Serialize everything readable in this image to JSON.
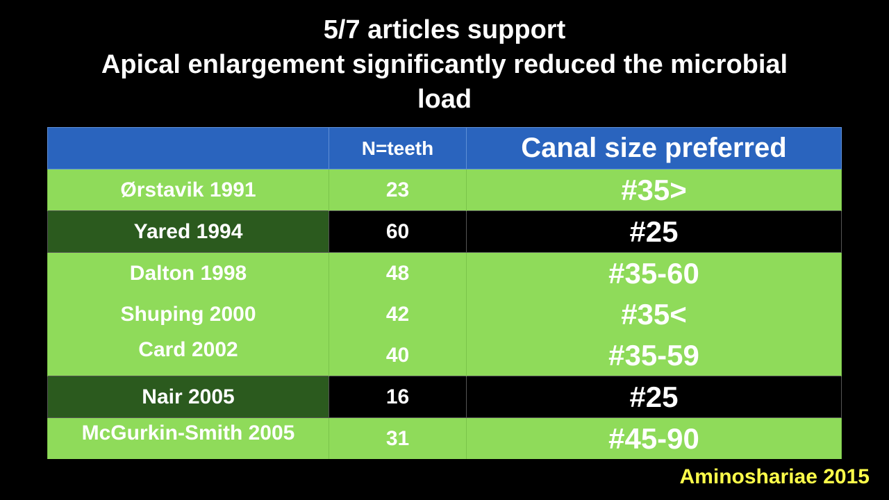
{
  "title": {
    "line1": "5/7 articles support",
    "line2": "Apical enlargement significantly reduced the microbial",
    "line3": "load"
  },
  "table": {
    "headers": [
      "",
      "N=teeth",
      "Canal size preferred"
    ],
    "rows": [
      {
        "study": "Ørstavik 1991",
        "n": "23",
        "size": "#35>"
      },
      {
        "study": "Yared 1994",
        "n": "60",
        "size": "#25"
      },
      {
        "study": "Dalton 1998",
        "n": "48",
        "size": "#35-60"
      },
      {
        "study": "Shuping 2000",
        "n": "42",
        "size": "#35<"
      },
      {
        "study": "Card 2002",
        "n": "40",
        "size": "#35-59"
      },
      {
        "study": "Nair 2005",
        "n": "16",
        "size": "#25"
      },
      {
        "study": "McGurkin-Smith 2005",
        "n": "31",
        "size": "#45-90"
      }
    ]
  },
  "citation": "Aminoshariae 2015",
  "colors": {
    "header_blue": "#2a64be",
    "row_green": "#8fdb5a",
    "dark_green": "#2b5a1e",
    "citation_yellow": "#ffff4a"
  }
}
